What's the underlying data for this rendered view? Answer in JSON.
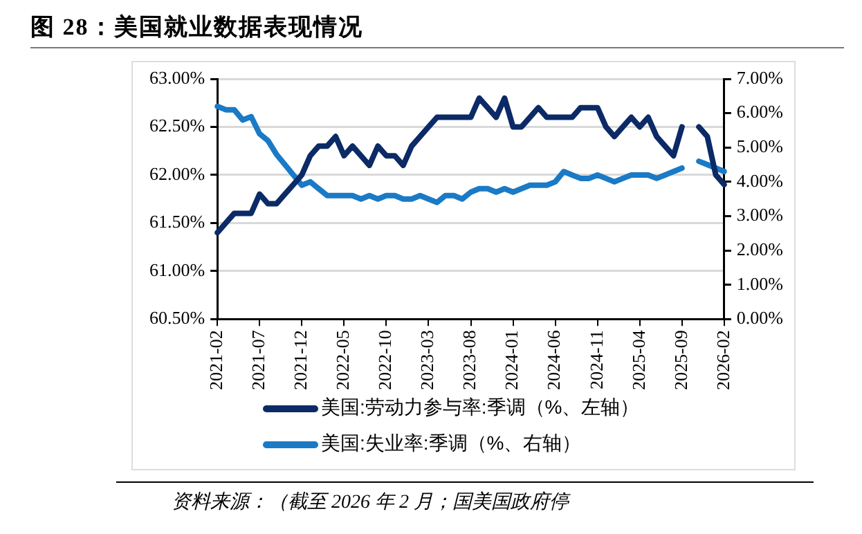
{
  "chart_data": {
    "type": "line",
    "title": "图 28：美国就业数据表现情况",
    "categories": [
      "2021-02",
      null,
      null,
      null,
      null,
      "2021-07",
      null,
      null,
      null,
      null,
      "2021-12",
      null,
      null,
      null,
      null,
      "2022-05",
      null,
      null,
      null,
      null,
      "2022-10",
      null,
      null,
      null,
      null,
      "2023-03",
      null,
      null,
      null,
      null,
      "2023-08",
      null,
      null,
      null,
      null,
      "2024-01",
      null,
      null,
      null,
      null,
      "2024-06",
      null,
      null,
      null,
      null,
      "2024-11",
      null,
      null,
      null,
      null,
      "2025-04",
      null,
      null,
      null,
      null,
      "2025-09",
      null,
      null,
      null,
      null,
      "2026-02"
    ],
    "series": [
      {
        "name": "美国:劳动力参与率:季调（%、左轴）",
        "color": "#0b2a66",
        "values": [
          61.4,
          61.5,
          61.6,
          61.6,
          61.6,
          61.8,
          61.7,
          61.7,
          61.8,
          61.9,
          62.0,
          62.2,
          62.3,
          62.3,
          62.4,
          62.2,
          62.3,
          62.2,
          62.1,
          62.3,
          62.2,
          62.2,
          62.1,
          62.3,
          62.4,
          62.5,
          62.6,
          62.6,
          62.6,
          62.6,
          62.6,
          62.8,
          62.7,
          62.6,
          62.8,
          62.5,
          62.5,
          62.6,
          62.7,
          62.6,
          62.6,
          62.6,
          62.6,
          62.7,
          62.7,
          62.7,
          62.5,
          62.4,
          62.5,
          62.6,
          62.5,
          62.6,
          62.4,
          62.3,
          62.2,
          62.5,
          null,
          62.5,
          62.4,
          62.0,
          61.9
        ]
      },
      {
        "name": "美国:失业率:季调（%、右轴）",
        "color": "#1a7ac6",
        "axis": "y2",
        "values": [
          6.2,
          6.1,
          6.1,
          5.8,
          5.9,
          5.4,
          5.2,
          4.8,
          4.5,
          4.2,
          3.9,
          4.0,
          3.8,
          3.6,
          3.6,
          3.6,
          3.6,
          3.5,
          3.6,
          3.5,
          3.6,
          3.6,
          3.5,
          3.5,
          3.6,
          3.5,
          3.4,
          3.6,
          3.6,
          3.5,
          3.7,
          3.8,
          3.8,
          3.7,
          3.8,
          3.7,
          3.8,
          3.9,
          3.9,
          3.9,
          4.0,
          4.3,
          4.2,
          4.1,
          4.1,
          4.2,
          4.1,
          4.0,
          4.1,
          4.2,
          4.2,
          4.2,
          4.1,
          4.2,
          4.3,
          4.4,
          null,
          4.6,
          4.5,
          4.4,
          4.3
        ]
      }
    ],
    "ylim": [
      60.5,
      63
    ],
    "yticks": [
      {
        "value": 60.5,
        "label": "60.50%"
      },
      {
        "value": 61,
        "label": "61.00%"
      },
      {
        "value": 61.5,
        "label": "61.50%"
      },
      {
        "value": 62,
        "label": "62.00%"
      },
      {
        "value": 62.5,
        "label": "62.50%"
      },
      {
        "value": 63,
        "label": "63.00%"
      }
    ],
    "y2lim": [
      0,
      7
    ],
    "y2ticks": [
      {
        "value": 0,
        "label": "0.00%"
      },
      {
        "value": 1,
        "label": "1.00%"
      },
      {
        "value": 2,
        "label": "2.00%"
      },
      {
        "value": 3,
        "label": "3.00%"
      },
      {
        "value": 4,
        "label": "4.00%"
      },
      {
        "value": 5,
        "label": "5.00%"
      },
      {
        "value": 6,
        "label": "6.00%"
      },
      {
        "value": 7,
        "label": "7.00%"
      }
    ],
    "grid": "y",
    "legend": "bottom",
    "marker": "none",
    "line_style": "solid",
    "annotations": [
      "资料来源：（截至 2026 年 2 月；国美国政府停"
    ]
  }
}
